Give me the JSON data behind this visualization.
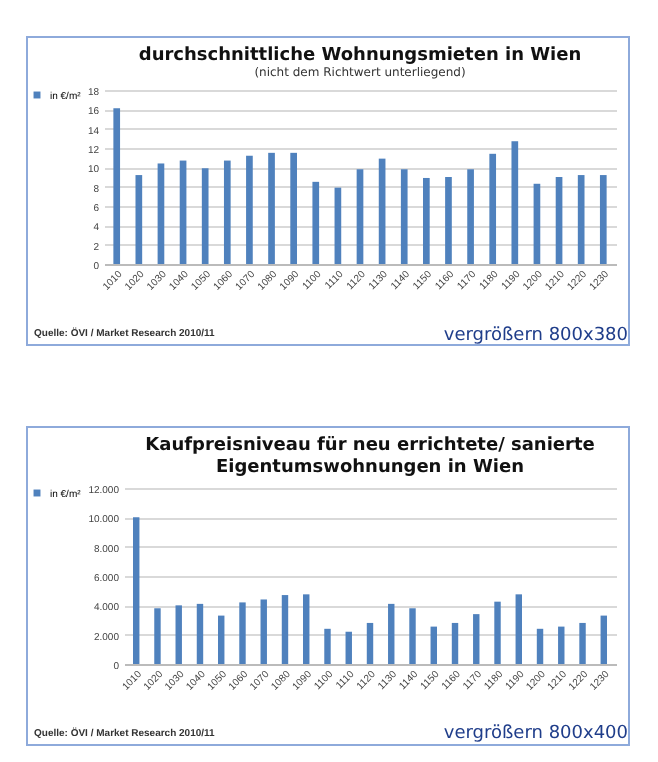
{
  "chart_data": [
    {
      "type": "bar",
      "title": "durchschnittliche Wohnungsmieten in Wien",
      "subtitle": "(nicht dem Richtwert unterliegend)",
      "categories": [
        "1010",
        "1020",
        "1030",
        "1040",
        "1050",
        "1060",
        "1070",
        "1080",
        "1090",
        "1100",
        "1110",
        "1120",
        "1130",
        "1140",
        "1150",
        "1160",
        "1170",
        "1180",
        "1190",
        "1200",
        "1210",
        "1220",
        "1230"
      ],
      "series": [
        {
          "name": "in €/m²",
          "color": "#4f81bd",
          "values": [
            16.1,
            9.2,
            10.4,
            10.7,
            9.9,
            10.7,
            11.2,
            11.5,
            11.5,
            8.5,
            7.9,
            9.8,
            10.9,
            9.8,
            8.9,
            9.0,
            9.8,
            11.4,
            12.7,
            8.3,
            9.0,
            9.2,
            9.2
          ]
        }
      ],
      "ylim": [
        0,
        18
      ],
      "yticks": [
        0,
        2,
        4,
        6,
        8,
        10,
        12,
        14,
        16,
        18
      ],
      "grid": "y",
      "legend": "left",
      "annotations": [
        "Quelle: ÖVI / Market Research 2010/11",
        "vergrößern 800x380"
      ]
    },
    {
      "type": "bar",
      "title": "Kaufpreisniveau für neu errichtete/ sanierte Eigentumswohnungen in Wien",
      "categories": [
        "1010",
        "1020",
        "1030",
        "1040",
        "1050",
        "1060",
        "1070",
        "1080",
        "1090",
        "1100",
        "1110",
        "1120",
        "1130",
        "1140",
        "1150",
        "1160",
        "1170",
        "1180",
        "1190",
        "1200",
        "1210",
        "1220",
        "1230"
      ],
      "series": [
        {
          "name": "in €/m²",
          "color": "#4f81bd",
          "values": [
            10000,
            3800,
            4000,
            4100,
            3300,
            4200,
            4400,
            4700,
            4750,
            2400,
            2200,
            2800,
            4100,
            3800,
            2550,
            2800,
            3400,
            4250,
            4750,
            2400,
            2550,
            2800,
            3300
          ]
        }
      ],
      "ylim": [
        0,
        12000
      ],
      "yticks": [
        0,
        {
          "value": 2000,
          "label": "2.000"
        },
        {
          "value": 4000,
          "label": "4.000"
        },
        {
          "value": 6000,
          "label": "6.000"
        },
        {
          "value": 8000,
          "label": "8.000"
        },
        {
          "value": 10000,
          "label": "10.000"
        },
        {
          "value": 12000,
          "label": "12.000"
        }
      ],
      "grid": "y",
      "legend": "left",
      "annotations": [
        "Quelle: ÖVI / Market Research 2010/11",
        "vergrößern 800x400"
      ]
    }
  ]
}
